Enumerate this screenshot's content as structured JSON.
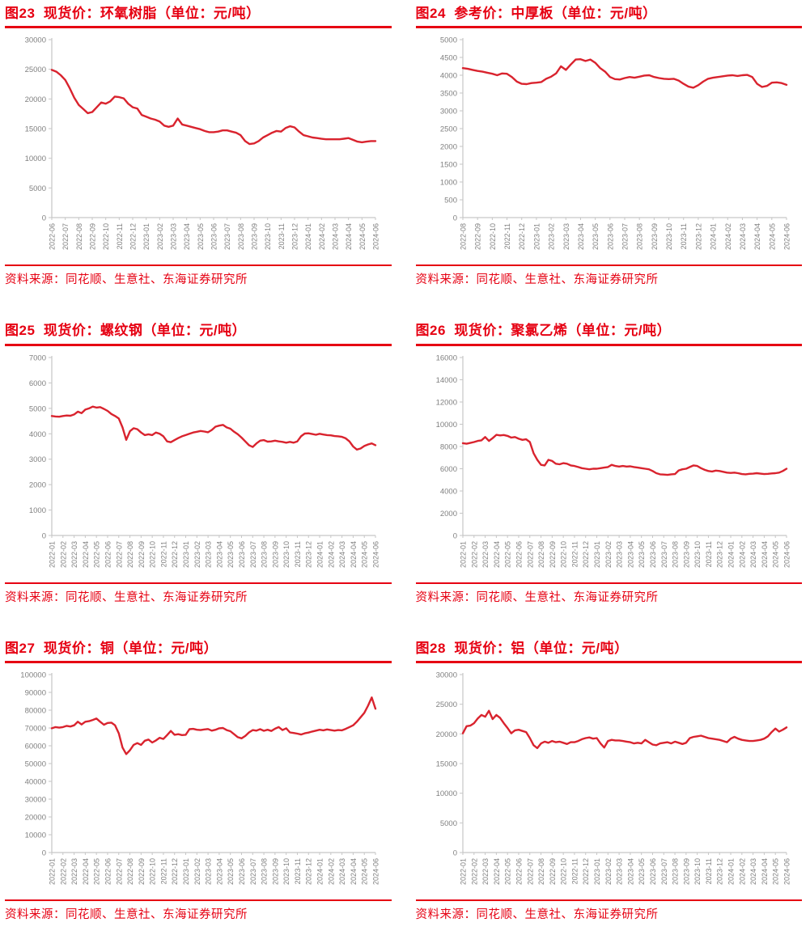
{
  "page": {
    "background": "#ffffff"
  },
  "colors": {
    "accent": "#e60012",
    "line": "#d9232e",
    "axis": "#c6c6c6",
    "tick_text": "#808080"
  },
  "chart_data": [
    {
      "type": "line",
      "title": "图23  现货价：环氧树脂（单位：元/吨）",
      "source": "资料来源：同花顺、生意社、东海证券研究所",
      "ylim": [
        0,
        30000
      ],
      "y_step": 5000,
      "grid": false,
      "legend": "none",
      "x_labels": [
        "2022-06",
        "2022-07",
        "2022-08",
        "2022-09",
        "2022-10",
        "2022-11",
        "2022-12",
        "2023-01",
        "2023-02",
        "2023-03",
        "2023-04",
        "2023-05",
        "2023-06",
        "2023-07",
        "2023-08",
        "2023-09",
        "2023-10",
        "2023-11",
        "2023-12",
        "2024-01",
        "2024-02",
        "2024-03",
        "2024-04",
        "2024-05",
        "2024-06"
      ],
      "values": [
        24900,
        24600,
        24000,
        23200,
        21800,
        20200,
        19000,
        18300,
        17600,
        17800,
        18600,
        19400,
        19200,
        19600,
        20400,
        20300,
        20100,
        19200,
        18600,
        18400,
        17300,
        17000,
        16700,
        16500,
        16200,
        15500,
        15300,
        15500,
        16700,
        15700,
        15500,
        15300,
        15100,
        14900,
        14600,
        14400,
        14400,
        14500,
        14700,
        14700,
        14500,
        14300,
        13900,
        12900,
        12400,
        12500,
        12900,
        13500,
        13900,
        14300,
        14600,
        14500,
        15100,
        15400,
        15200,
        14500,
        13900,
        13700,
        13500,
        13400,
        13300,
        13200,
        13200,
        13200,
        13200,
        13300,
        13400,
        13100,
        12800,
        12700,
        12800,
        12900,
        12900
      ]
    },
    {
      "type": "line",
      "title": "图24  参考价：中厚板（单位：元/吨）",
      "source": "资料来源：同花顺、生意社、东海证券研究所",
      "ylim": [
        0,
        5000
      ],
      "y_step": 500,
      "grid": false,
      "legend": "none",
      "x_labels": [
        "2022-08",
        "2022-09",
        "2022-10",
        "2022-11",
        "2022-12",
        "2023-01",
        "2023-02",
        "2023-03",
        "2023-04",
        "2023-05",
        "2023-06",
        "2023-07",
        "2023-08",
        "2023-09",
        "2023-10",
        "2023-11",
        "2023-12",
        "2024-01",
        "2024-02",
        "2024-03",
        "2024-04",
        "2024-05",
        "2024-06"
      ],
      "values": [
        4200,
        4180,
        4150,
        4120,
        4100,
        4070,
        4040,
        4000,
        4050,
        4040,
        3950,
        3820,
        3760,
        3750,
        3780,
        3790,
        3810,
        3900,
        3960,
        4050,
        4250,
        4150,
        4300,
        4440,
        4450,
        4400,
        4440,
        4350,
        4200,
        4100,
        3950,
        3890,
        3880,
        3920,
        3950,
        3930,
        3960,
        3990,
        4000,
        3950,
        3920,
        3900,
        3890,
        3900,
        3850,
        3760,
        3680,
        3650,
        3720,
        3820,
        3900,
        3930,
        3950,
        3970,
        3990,
        4000,
        3980,
        4000,
        4010,
        3950,
        3760,
        3670,
        3700,
        3790,
        3800,
        3780,
        3730
      ]
    },
    {
      "type": "line",
      "title": "图25  现货价：螺纹钢（单位：元/吨）",
      "source": "资料来源：同花顺、生意社、东海证券研究所",
      "ylim": [
        0,
        7000
      ],
      "y_step": 1000,
      "grid": false,
      "legend": "none",
      "x_labels": [
        "2022-01",
        "2022-02",
        "2022-03",
        "2022-04",
        "2022-05",
        "2022-06",
        "2022-07",
        "2022-08",
        "2022-09",
        "2022-10",
        "2022-11",
        "2022-12",
        "2023-01",
        "2023-02",
        "2023-03",
        "2023-04",
        "2023-05",
        "2023-06",
        "2023-07",
        "2023-08",
        "2023-09",
        "2023-10",
        "2023-11",
        "2023-12",
        "2024-01",
        "2024-02",
        "2024-03",
        "2024-04",
        "2024-05",
        "2024-06"
      ],
      "values": [
        4700,
        4680,
        4670,
        4700,
        4720,
        4710,
        4760,
        4870,
        4810,
        4950,
        5000,
        5070,
        5030,
        5050,
        4980,
        4900,
        4780,
        4700,
        4600,
        4250,
        3760,
        4100,
        4220,
        4180,
        4050,
        3950,
        3980,
        3950,
        4050,
        4000,
        3900,
        3700,
        3670,
        3750,
        3830,
        3900,
        3950,
        4000,
        4050,
        4080,
        4110,
        4090,
        4060,
        4150,
        4280,
        4320,
        4350,
        4250,
        4200,
        4080,
        3980,
        3850,
        3700,
        3550,
        3480,
        3620,
        3730,
        3750,
        3690,
        3700,
        3730,
        3700,
        3680,
        3650,
        3680,
        3650,
        3700,
        3900,
        4010,
        4020,
        3990,
        3960,
        4000,
        3970,
        3950,
        3940,
        3910,
        3900,
        3880,
        3820,
        3700,
        3500,
        3380,
        3420,
        3520,
        3580,
        3620,
        3550
      ]
    },
    {
      "type": "line",
      "title": "图26  现货价：聚氯乙烯（单位：元/吨）",
      "source": "资料来源：同花顺、生意社、东海证券研究所",
      "ylim": [
        0,
        16000
      ],
      "y_step": 2000,
      "grid": false,
      "legend": "none",
      "x_labels": [
        "2022-01",
        "2022-02",
        "2022-03",
        "2022-04",
        "2022-05",
        "2022-06",
        "2022-07",
        "2022-08",
        "2022-09",
        "2022-10",
        "2022-11",
        "2022-12",
        "2023-01",
        "2023-02",
        "2023-03",
        "2023-04",
        "2023-05",
        "2023-06",
        "2023-07",
        "2023-08",
        "2023-09",
        "2023-10",
        "2023-11",
        "2023-12",
        "2024-01",
        "2024-02",
        "2024-03",
        "2024-04",
        "2024-05",
        "2024-06"
      ],
      "values": [
        8300,
        8250,
        8320,
        8400,
        8500,
        8550,
        8850,
        8500,
        8750,
        9050,
        9000,
        9030,
        8950,
        8800,
        8850,
        8700,
        8600,
        8650,
        8400,
        7400,
        6800,
        6350,
        6300,
        6800,
        6700,
        6450,
        6400,
        6500,
        6450,
        6300,
        6250,
        6150,
        6050,
        6000,
        5950,
        6000,
        6000,
        6050,
        6100,
        6150,
        6350,
        6250,
        6200,
        6250,
        6200,
        6220,
        6150,
        6100,
        6050,
        6000,
        5950,
        5800,
        5600,
        5500,
        5480,
        5450,
        5500,
        5520,
        5850,
        5950,
        6000,
        6150,
        6300,
        6250,
        6050,
        5900,
        5800,
        5750,
        5830,
        5800,
        5720,
        5650,
        5620,
        5650,
        5600,
        5520,
        5500,
        5540,
        5560,
        5600,
        5560,
        5520,
        5540,
        5580,
        5600,
        5650,
        5800,
        6000
      ]
    },
    {
      "type": "line",
      "title": "图27  现货价：铜（单位：元/吨）",
      "source": "资料来源：同花顺、生意社、东海证券研究所",
      "ylim": [
        0,
        100000
      ],
      "y_step": 10000,
      "grid": false,
      "legend": "none",
      "x_labels": [
        "2022-01",
        "2022-02",
        "2022-03",
        "2022-04",
        "2022-05",
        "2022-06",
        "2022-07",
        "2022-08",
        "2022-09",
        "2022-10",
        "2022-11",
        "2022-12",
        "2023-01",
        "2023-02",
        "2023-03",
        "2023-04",
        "2023-05",
        "2023-06",
        "2023-07",
        "2023-08",
        "2023-09",
        "2023-10",
        "2023-11",
        "2023-12",
        "2024-01",
        "2024-02",
        "2024-03",
        "2024-04",
        "2024-05",
        "2024-06"
      ],
      "values": [
        69800,
        70500,
        70200,
        70500,
        71200,
        70800,
        71500,
        73500,
        72000,
        73500,
        73800,
        74500,
        75300,
        73500,
        71800,
        72800,
        73000,
        71500,
        67000,
        59000,
        55300,
        57500,
        60500,
        61500,
        60500,
        62800,
        63500,
        61800,
        63000,
        64500,
        63800,
        66000,
        68300,
        66200,
        66500,
        66000,
        66200,
        69300,
        69500,
        69000,
        68800,
        69200,
        69400,
        68500,
        69000,
        69800,
        70000,
        68800,
        68200,
        66500,
        64800,
        64200,
        65500,
        67500,
        68800,
        68500,
        69300,
        68400,
        69000,
        68300,
        69600,
        70500,
        68800,
        69800,
        67500,
        67200,
        66800,
        66300,
        67000,
        67400,
        68000,
        68500,
        69000,
        68700,
        69200,
        68800,
        68500,
        68800,
        68700,
        69500,
        70500,
        71500,
        73500,
        76000,
        78500,
        82500,
        87200,
        80800
      ]
    },
    {
      "type": "line",
      "title": "图28  现货价：铝（单位：元/吨）",
      "source": "资料来源：同花顺、生意社、东海证券研究所",
      "ylim": [
        0,
        30000
      ],
      "y_step": 5000,
      "grid": false,
      "legend": "none",
      "x_labels": [
        "2022-01",
        "2022-02",
        "2022-03",
        "2022-04",
        "2022-05",
        "2022-06",
        "2022-07",
        "2022-08",
        "2022-09",
        "2022-10",
        "2022-11",
        "2022-12",
        "2023-01",
        "2023-02",
        "2023-03",
        "2023-04",
        "2023-05",
        "2023-06",
        "2023-07",
        "2023-08",
        "2023-09",
        "2023-10",
        "2023-11",
        "2023-12",
        "2024-01",
        "2024-02",
        "2024-03",
        "2024-04",
        "2024-05",
        "2024-06"
      ],
      "values": [
        20100,
        21300,
        21400,
        21800,
        22600,
        23200,
        22900,
        23900,
        22500,
        23200,
        22700,
        21800,
        21000,
        20100,
        20600,
        20700,
        20500,
        20300,
        19300,
        18100,
        17600,
        18400,
        18700,
        18500,
        18800,
        18600,
        18700,
        18500,
        18300,
        18600,
        18600,
        18800,
        19100,
        19300,
        19400,
        19200,
        19300,
        18400,
        17700,
        18800,
        19000,
        18900,
        18900,
        18800,
        18700,
        18600,
        18400,
        18500,
        18400,
        19000,
        18600,
        18200,
        18100,
        18400,
        18500,
        18600,
        18400,
        18700,
        18500,
        18300,
        18500,
        19300,
        19500,
        19600,
        19700,
        19500,
        19300,
        19200,
        19100,
        19000,
        18800,
        18600,
        19200,
        19500,
        19200,
        19000,
        18900,
        18800,
        18800,
        18900,
        19000,
        19200,
        19600,
        20300,
        20900,
        20400,
        20700,
        21100
      ]
    }
  ]
}
